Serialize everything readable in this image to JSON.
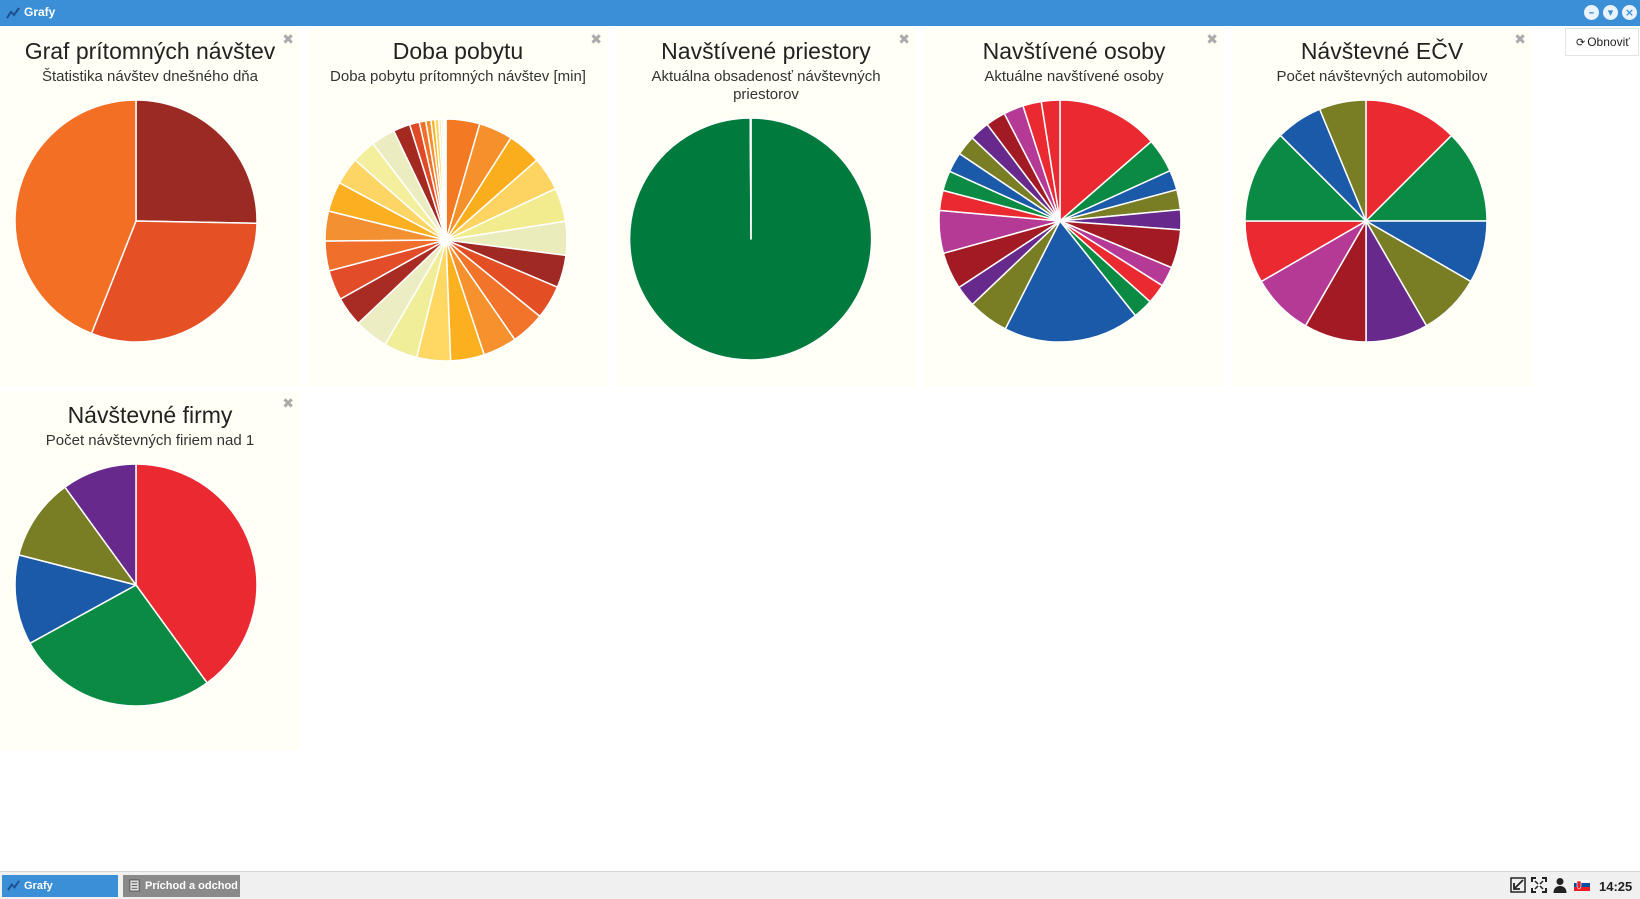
{
  "window": {
    "title": "Grafy",
    "refresh_label": "Obnoviť"
  },
  "icons": {
    "close": "close-icon",
    "minimize": "minimize-icon",
    "restore": "restore-icon",
    "refresh": "refresh-icon"
  },
  "panels": [
    {
      "title": "Graf prítomných návštev",
      "subtitle": "Štatistika návštev dnešného dňa"
    },
    {
      "title": "Doba pobytu",
      "subtitle": "Doba pobytu prítomných návštev [min]"
    },
    {
      "title": "Navštívené priestory",
      "subtitle": "Aktuálna obsadenosť návštevných priestorov"
    },
    {
      "title": "Navštívené osoby",
      "subtitle": "Aktuálne navštívené osoby"
    },
    {
      "title": "Návštevné EČV",
      "subtitle": "Počet návštevných automobilov"
    },
    {
      "title": "Návštevné firmy",
      "subtitle": "Počet návštevných firiem nad 1"
    }
  ],
  "chart_data": [
    {
      "type": "pie",
      "title": "Graf prítomných návštev",
      "subtitle": "Štatistika návštev dnešného dňa",
      "values": [
        25.3,
        30.7,
        44.0
      ],
      "colors": [
        "#9b2b22",
        "#e55124",
        "#f26f23"
      ]
    },
    {
      "type": "pie",
      "title": "Doba pobytu",
      "subtitle": "Doba pobytu prítomných návštev [min]",
      "values": [
        5.2,
        5.2,
        5.2,
        5.2,
        5.2,
        5.2,
        5.0,
        5.2,
        5.2,
        5.2,
        5.2,
        5.2,
        5.2,
        5.2,
        4.6,
        4.6,
        4.6,
        4.6,
        4.6,
        4.2,
        3.7,
        3.7,
        2.6,
        1.5,
        1.0,
        0.8,
        0.6,
        0.6,
        0.4,
        0.3,
        0.2,
        0.2
      ],
      "colors": [
        "#f37a22",
        "#f6902a",
        "#fbae1c",
        "#fdd462",
        "#f3ec8e",
        "#eaecbc",
        "#a02a23",
        "#e34e25",
        "#f2742a",
        "#f6922e",
        "#fbb11f",
        "#fed862",
        "#f1ee9a",
        "#ecedc2",
        "#a82c24",
        "#e24c28",
        "#f0702b",
        "#f39031",
        "#fbb021",
        "#fdd564",
        "#f4ef9c",
        "#ebecc0",
        "#a42a21",
        "#e04a26",
        "#f17029",
        "#f48f30",
        "#fbb01f",
        "#fed664",
        "#f2ec94",
        "#e9ebbe",
        "#a52c25",
        "#e34c27"
      ]
    },
    {
      "type": "pie",
      "title": "Navštívené priestory",
      "subtitle": "Aktuálna obsadenosť návštevných priestorov",
      "values": [
        99.9,
        0.1
      ],
      "colors": [
        "#007a3d",
        "#007a3d"
      ]
    },
    {
      "type": "pie",
      "title": "Navštívené osoby",
      "subtitle": "Aktuálne navštívené osoby",
      "values": [
        14.3,
        4.8,
        2.8,
        2.8,
        2.8,
        5.4,
        2.8,
        2.8,
        2.8,
        19.1,
        5.7,
        3.0,
        5.2,
        6.0,
        2.8,
        2.8,
        2.8,
        2.8,
        2.8,
        2.8,
        2.8,
        2.6,
        2.6
      ],
      "colors": [
        "#ea2a30",
        "#0a8a42",
        "#1b5aa8",
        "#797e25",
        "#672a8c",
        "#a21b24",
        "#b53a96",
        "#ea2a30",
        "#0a8a42",
        "#1b5aa8",
        "#797e25",
        "#672a8c",
        "#a21b24",
        "#b53a96",
        "#ea2a30",
        "#0a8a42",
        "#1b5aa8",
        "#797e25",
        "#672a8c",
        "#a21b24",
        "#b53a96",
        "#ea2a30",
        "#ea2a30"
      ]
    },
    {
      "type": "pie",
      "title": "Návštevné EČV",
      "subtitle": "Počet návštevných automobilov",
      "values": [
        12.5,
        12.5,
        8.33,
        8.33,
        8.33,
        8.33,
        8.33,
        8.33,
        12.5,
        6.25,
        6.25
      ],
      "colors": [
        "#ea2a30",
        "#0a8a42",
        "#1b5aa8",
        "#797e25",
        "#672a8c",
        "#a21b24",
        "#b53a96",
        "#ea2a30",
        "#0a8a42",
        "#1b5aa8",
        "#797e25"
      ]
    },
    {
      "type": "pie",
      "title": "Návštevné firmy",
      "subtitle": "Počet návštevných firiem nad 1",
      "values": [
        40,
        27,
        12,
        11,
        10
      ],
      "colors": [
        "#ea2a30",
        "#0a8a42",
        "#1b5aa8",
        "#797e25",
        "#672a8c"
      ]
    }
  ],
  "taskbar": {
    "tasks": [
      {
        "label": "Grafy"
      },
      {
        "label": "Príchod a odchod n"
      }
    ],
    "clock": "14:25"
  }
}
